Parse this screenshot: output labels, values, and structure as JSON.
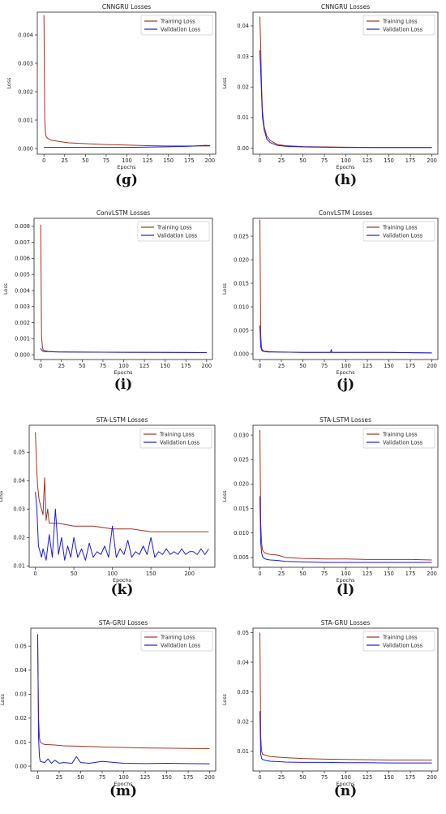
{
  "figure": {
    "charts": [
      {
        "label": "(g)",
        "title": "CNNGRU Losses"
      },
      {
        "label": "(h)",
        "title": "CNNGRU Losses"
      },
      {
        "label": "(i)",
        "title": "ConvLSTM Losses"
      },
      {
        "label": "(j)",
        "title": "ConvLSTM Losses"
      },
      {
        "label": "(k)",
        "title": "STA-LSTM Losses"
      },
      {
        "label": "(l)",
        "title": "STA-LSTM Losses"
      },
      {
        "label": "(m)",
        "title": "STA-GRU Losses"
      },
      {
        "label": "(n)",
        "title": "STA-GRU Losses"
      }
    ]
  },
  "colors": {
    "training": "#a0341f",
    "validation": "#1a1adf"
  },
  "chart_data": [
    {
      "type": "line",
      "title": "CNNGRU Losses",
      "xlabel": "Epochs",
      "ylabel": "Loss",
      "xlim": [
        -8,
        207
      ],
      "ylim": [
        -0.0002,
        0.0048
      ],
      "xticks": [
        0,
        25,
        50,
        75,
        100,
        125,
        150,
        175,
        200
      ],
      "yticks": [
        0.0,
        0.001,
        0.002,
        0.003,
        0.004
      ],
      "ytick_labels": [
        "0.000",
        "0.001",
        "0.002",
        "0.003",
        "0.004"
      ],
      "legend": "top-right",
      "series": [
        {
          "name": "Training Loss",
          "x": [
            0,
            1,
            2,
            3,
            5,
            8,
            12,
            20,
            30,
            50,
            75,
            100,
            125,
            150,
            175,
            200
          ],
          "y": [
            0.0047,
            0.001,
            0.0005,
            0.0004,
            0.00035,
            0.0003,
            0.00028,
            0.00024,
            0.0002,
            0.00017,
            0.00014,
            0.00012,
            0.0001,
            9e-05,
            9e-05,
            9e-05
          ]
        },
        {
          "name": "Validation Loss",
          "x": [
            0,
            25,
            50,
            75,
            100,
            125,
            150,
            175,
            195,
            200
          ],
          "y": [
            4e-05,
            4e-05,
            4e-05,
            4e-05,
            4e-05,
            5e-05,
            6e-05,
            8e-05,
            0.00011,
            0.0001
          ]
        }
      ]
    },
    {
      "type": "line",
      "title": "CNNGRU Losses",
      "xlabel": "Epochs",
      "ylabel": "Loss",
      "xlim": [
        -8,
        207
      ],
      "ylim": [
        -0.002,
        0.0445
      ],
      "xticks": [
        0,
        25,
        50,
        75,
        100,
        125,
        150,
        175,
        200
      ],
      "yticks": [
        0.0,
        0.01,
        0.02,
        0.03,
        0.04
      ],
      "ytick_labels": [
        "0.00",
        "0.01",
        "0.02",
        "0.03",
        "0.04"
      ],
      "legend": "top-right",
      "series": [
        {
          "name": "Training Loss",
          "x": [
            0,
            1,
            2,
            3,
            5,
            8,
            12,
            20,
            30,
            50,
            100,
            150,
            200
          ],
          "y": [
            0.043,
            0.033,
            0.02,
            0.012,
            0.007,
            0.004,
            0.0025,
            0.0012,
            0.0008,
            0.0005,
            0.0003,
            0.0002,
            0.0002
          ]
        },
        {
          "name": "Validation Loss",
          "x": [
            0,
            1,
            2,
            3,
            5,
            8,
            12,
            20,
            30,
            50,
            100,
            150,
            200
          ],
          "y": [
            0.032,
            0.025,
            0.017,
            0.01,
            0.006,
            0.003,
            0.0018,
            0.0009,
            0.0006,
            0.0004,
            0.0002,
            0.0002,
            0.0002
          ]
        }
      ]
    },
    {
      "type": "line",
      "title": "ConvLSTM Losses",
      "xlabel": "Epochs",
      "ylabel": "Loss",
      "xlim": [
        -8,
        207
      ],
      "ylim": [
        -0.0003,
        0.0085
      ],
      "xticks": [
        0,
        25,
        50,
        75,
        100,
        125,
        150,
        175,
        200
      ],
      "yticks": [
        0.0,
        0.001,
        0.002,
        0.003,
        0.004,
        0.005,
        0.006,
        0.007,
        0.008
      ],
      "ytick_labels": [
        "0.000",
        "0.001",
        "0.002",
        "0.003",
        "0.004",
        "0.005",
        "0.006",
        "0.007",
        "0.008"
      ],
      "legend": "top-right",
      "series": [
        {
          "name": "Training Loss",
          "x": [
            0,
            1,
            2,
            3,
            5,
            10,
            20,
            50,
            100,
            150,
            200
          ],
          "y": [
            0.0081,
            0.0012,
            0.0005,
            0.0003,
            0.00025,
            0.0002,
            0.00018,
            0.00016,
            0.00015,
            0.00014,
            0.00013
          ]
        },
        {
          "name": "Validation Loss",
          "x": [
            0,
            1,
            2,
            3,
            5,
            10,
            20,
            50,
            100,
            150,
            200
          ],
          "y": [
            0.0004,
            0.0003,
            0.00025,
            0.0002,
            0.0002,
            0.00019,
            0.00017,
            0.00016,
            0.00015,
            0.00014,
            0.00013
          ]
        }
      ]
    },
    {
      "type": "line",
      "title": "ConvLSTM Losses",
      "xlabel": "Epochs",
      "ylabel": "Loss",
      "xlim": [
        -8,
        207
      ],
      "ylim": [
        -0.0012,
        0.0288
      ],
      "xticks": [
        0,
        25,
        50,
        75,
        100,
        125,
        150,
        175,
        200
      ],
      "yticks": [
        0.0,
        0.005,
        0.01,
        0.015,
        0.02,
        0.025
      ],
      "ytick_labels": [
        "0.000",
        "0.005",
        "0.010",
        "0.015",
        "0.020",
        "0.025"
      ],
      "legend": "top-right",
      "series": [
        {
          "name": "Training Loss",
          "x": [
            0,
            1,
            2,
            3,
            5,
            10,
            20,
            50,
            100,
            150,
            200
          ],
          "y": [
            0.0285,
            0.004,
            0.0012,
            0.0008,
            0.0006,
            0.0005,
            0.0004,
            0.0003,
            0.0003,
            0.0003,
            0.0002
          ]
        },
        {
          "name": "Validation Loss",
          "x": [
            0,
            1,
            2,
            3,
            5,
            10,
            20,
            50,
            82,
            83,
            84,
            100,
            150,
            200
          ],
          "y": [
            0.006,
            0.0015,
            0.0008,
            0.0006,
            0.0005,
            0.0004,
            0.0004,
            0.0003,
            0.0003,
            0.0009,
            0.0003,
            0.0003,
            0.0003,
            0.0002
          ]
        }
      ]
    },
    {
      "type": "line",
      "title": "STA-LSTM Losses",
      "xlabel": "Epochs",
      "ylabel": "Loss",
      "xlim": [
        -8,
        233
      ],
      "ylim": [
        0.0095,
        0.0595
      ],
      "xticks": [
        0,
        50,
        100,
        150,
        200
      ],
      "yticks": [
        0.01,
        0.02,
        0.03,
        0.04,
        0.05
      ],
      "ytick_labels": [
        "0.01",
        "0.02",
        "0.03",
        "0.04",
        "0.05"
      ],
      "legend": "top-right",
      "series": [
        {
          "name": "Training Loss",
          "x": [
            0,
            1,
            2,
            3,
            5,
            8,
            10,
            12,
            14,
            16,
            18,
            20,
            30,
            50,
            75,
            100,
            125,
            150,
            175,
            200,
            225
          ],
          "y": [
            0.057,
            0.05,
            0.043,
            0.038,
            0.033,
            0.03,
            0.028,
            0.041,
            0.026,
            0.03,
            0.025,
            0.025,
            0.025,
            0.024,
            0.024,
            0.023,
            0.023,
            0.022,
            0.022,
            0.022,
            0.022
          ]
        },
        {
          "name": "Validation Loss",
          "x": [
            0,
            2,
            4,
            6,
            8,
            10,
            14,
            18,
            22,
            26,
            30,
            34,
            38,
            42,
            46,
            50,
            55,
            60,
            65,
            70,
            75,
            80,
            85,
            90,
            95,
            100,
            105,
            110,
            115,
            120,
            125,
            130,
            135,
            140,
            145,
            150,
            155,
            160,
            165,
            170,
            175,
            180,
            185,
            190,
            195,
            200,
            205,
            210,
            215,
            220,
            225
          ],
          "y": [
            0.036,
            0.03,
            0.017,
            0.015,
            0.013,
            0.016,
            0.012,
            0.021,
            0.013,
            0.03,
            0.014,
            0.02,
            0.012,
            0.017,
            0.013,
            0.02,
            0.013,
            0.016,
            0.012,
            0.018,
            0.013,
            0.015,
            0.014,
            0.017,
            0.013,
            0.024,
            0.013,
            0.016,
            0.014,
            0.019,
            0.013,
            0.015,
            0.014,
            0.017,
            0.014,
            0.02,
            0.013,
            0.015,
            0.014,
            0.016,
            0.014,
            0.015,
            0.014,
            0.016,
            0.014,
            0.015,
            0.015,
            0.014,
            0.016,
            0.014,
            0.016
          ]
        }
      ]
    },
    {
      "type": "line",
      "title": "STA-LSTM Losses",
      "xlabel": "Epochs",
      "ylabel": "Loss",
      "xlim": [
        -8,
        207
      ],
      "ylim": [
        0.003,
        0.032
      ],
      "xticks": [
        0,
        25,
        50,
        75,
        100,
        125,
        150,
        175,
        200
      ],
      "yticks": [
        0.005,
        0.01,
        0.015,
        0.02,
        0.025,
        0.03
      ],
      "ytick_labels": [
        "0.005",
        "0.010",
        "0.015",
        "0.020",
        "0.025",
        "0.030"
      ],
      "legend": "top-right",
      "series": [
        {
          "name": "Training Loss",
          "x": [
            0,
            1,
            2,
            3,
            5,
            8,
            12,
            20,
            30,
            50,
            75,
            100,
            125,
            150,
            175,
            200
          ],
          "y": [
            0.031,
            0.012,
            0.008,
            0.0065,
            0.006,
            0.0058,
            0.0056,
            0.0055,
            0.005,
            0.0048,
            0.0047,
            0.0047,
            0.0046,
            0.0046,
            0.0046,
            0.0045
          ]
        },
        {
          "name": "Validation Loss",
          "x": [
            0,
            1,
            2,
            3,
            5,
            8,
            12,
            20,
            30,
            50,
            75,
            100,
            125,
            150,
            175,
            200
          ],
          "y": [
            0.0175,
            0.008,
            0.006,
            0.0052,
            0.0048,
            0.0046,
            0.0045,
            0.0044,
            0.0042,
            0.0041,
            0.004,
            0.004,
            0.004,
            0.004,
            0.004,
            0.004
          ]
        }
      ]
    },
    {
      "type": "line",
      "title": "STA-GRU Losses",
      "xlabel": "Epochs",
      "ylabel": "Loss",
      "xlim": [
        -8,
        207
      ],
      "ylim": [
        -0.002,
        0.0575
      ],
      "xticks": [
        0,
        25,
        50,
        75,
        100,
        125,
        150,
        175,
        200
      ],
      "yticks": [
        0.0,
        0.01,
        0.02,
        0.03,
        0.04,
        0.05
      ],
      "ytick_labels": [
        "0.00",
        "0.01",
        "0.02",
        "0.03",
        "0.04",
        "0.05"
      ],
      "legend": "top-right",
      "series": [
        {
          "name": "Training Loss",
          "x": [
            0,
            1,
            2,
            3,
            5,
            8,
            12,
            20,
            30,
            50,
            75,
            100,
            125,
            150,
            175,
            200
          ],
          "y": [
            0.052,
            0.02,
            0.012,
            0.01,
            0.0095,
            0.009,
            0.009,
            0.0088,
            0.0085,
            0.0083,
            0.008,
            0.0078,
            0.0076,
            0.0075,
            0.0074,
            0.0073
          ]
        },
        {
          "name": "Validation Loss",
          "x": [
            0,
            1,
            2,
            3,
            5,
            8,
            12,
            16,
            20,
            25,
            30,
            40,
            45,
            50,
            60,
            75,
            100,
            125,
            150,
            175,
            200
          ],
          "y": [
            0.055,
            0.012,
            0.004,
            0.002,
            0.0018,
            0.0015,
            0.003,
            0.0012,
            0.0025,
            0.0012,
            0.0015,
            0.0012,
            0.004,
            0.0015,
            0.0012,
            0.002,
            0.0012,
            0.0011,
            0.0012,
            0.0011,
            0.001
          ]
        }
      ]
    },
    {
      "type": "line",
      "title": "STA-GRU Losses",
      "xlabel": "Epochs",
      "ylabel": "Loss",
      "xlim": [
        -8,
        207
      ],
      "ylim": [
        0.0033,
        0.0515
      ],
      "xticks": [
        0,
        25,
        50,
        75,
        100,
        125,
        150,
        175,
        200
      ],
      "yticks": [
        0.01,
        0.02,
        0.03,
        0.04,
        0.05
      ],
      "ytick_labels": [
        "0.01",
        "0.02",
        "0.03",
        "0.04",
        "0.05"
      ],
      "legend": "top-right",
      "series": [
        {
          "name": "Training Loss",
          "x": [
            0,
            1,
            2,
            3,
            5,
            8,
            12,
            20,
            30,
            50,
            75,
            100,
            125,
            150,
            175,
            200
          ],
          "y": [
            0.05,
            0.015,
            0.01,
            0.009,
            0.0088,
            0.0085,
            0.0082,
            0.008,
            0.0078,
            0.0075,
            0.0073,
            0.0072,
            0.0071,
            0.007,
            0.007,
            0.007
          ]
        },
        {
          "name": "Validation Loss",
          "x": [
            0,
            1,
            2,
            3,
            5,
            8,
            12,
            20,
            30,
            50,
            75,
            100,
            125,
            150,
            175,
            200
          ],
          "y": [
            0.0235,
            0.009,
            0.0075,
            0.0072,
            0.007,
            0.0068,
            0.0066,
            0.0065,
            0.0063,
            0.0062,
            0.0062,
            0.0061,
            0.0061,
            0.006,
            0.006,
            0.006
          ]
        }
      ]
    }
  ]
}
